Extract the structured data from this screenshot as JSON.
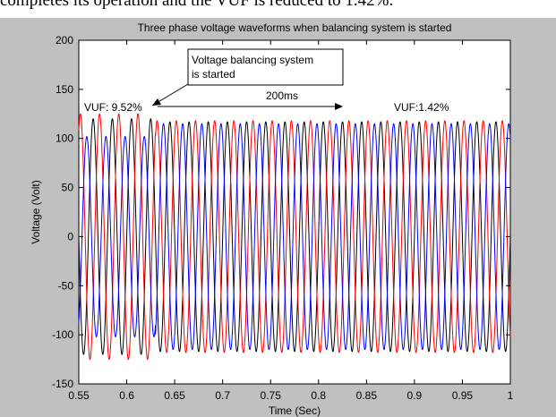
{
  "caption_fragment": "completes its operation and the VUF is reduced to 1.42%.",
  "chart_data": {
    "type": "line",
    "title": "Three phase voltage waveforms when balancing system is started",
    "xlabel": "Time (Sec)",
    "ylabel": "Voltage (Volt)",
    "xlim": [
      0.55,
      1.0
    ],
    "ylim": [
      -150,
      200
    ],
    "xticks": [
      "0.55",
      "0.6",
      "0.65",
      "0.7",
      "0.75",
      "0.8",
      "0.85",
      "0.9",
      "0.95",
      "1"
    ],
    "yticks": [
      "-150",
      "-100",
      "-50",
      "0",
      "50",
      "100",
      "150",
      "200"
    ],
    "grid": false,
    "frequency_hz": 50,
    "balancing_start_s": 0.63,
    "series": [
      {
        "color": "#000000",
        "phase_deg": 0,
        "amplitude_before": 120,
        "amplitude_after": 117
      },
      {
        "color": "#ff0000",
        "phase_deg": -120,
        "amplitude_before": 125,
        "amplitude_after": 118
      },
      {
        "color": "#0000ff",
        "phase_deg": 120,
        "amplitude_before": 102,
        "amplitude_after": 115
      }
    ],
    "annotations": {
      "box_text": [
        "Voltage balancing system",
        "is started"
      ],
      "vuf_before": "VUF: 9.52%",
      "vuf_after": "VUF:1.42%",
      "interval": "200ms"
    }
  },
  "colors": {
    "figure_bg": "#c0c0c0",
    "axes_bg": "#ffffff"
  }
}
